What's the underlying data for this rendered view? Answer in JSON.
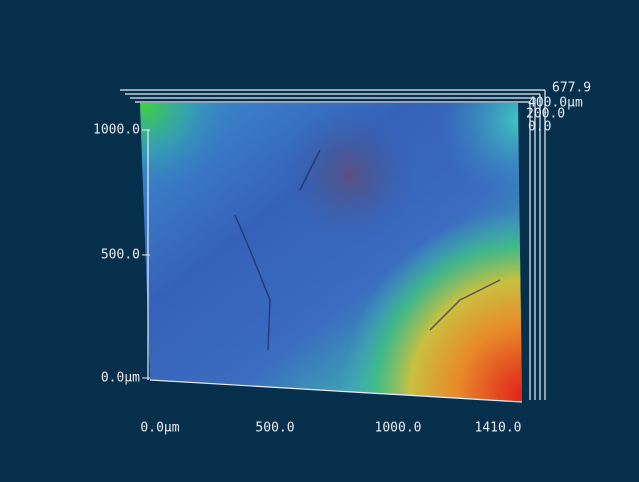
{
  "y_axis": {
    "labels": [
      "1000.0",
      "500.0",
      "0.0μm"
    ]
  },
  "x_axis": {
    "labels": [
      "0.0μm",
      "500.0",
      "1000.0",
      "1410.0"
    ]
  },
  "z_axis": {
    "labels": [
      "677.9",
      "400.0μm",
      "200.0",
      "0.0"
    ]
  }
}
